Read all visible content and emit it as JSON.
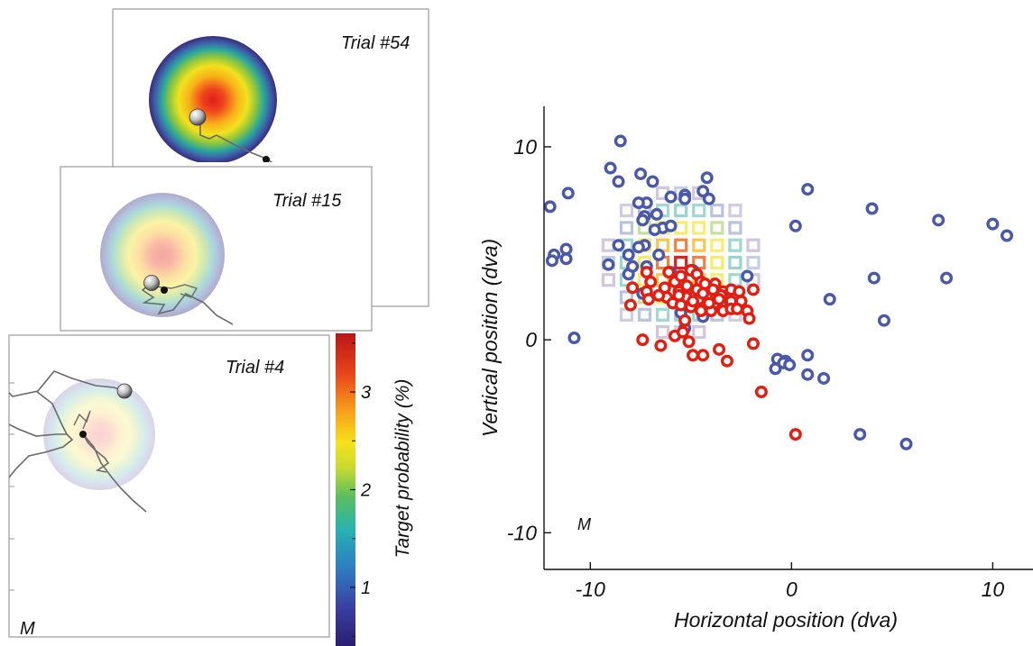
{
  "panels": {
    "trial_a": {
      "label": "Trial #54",
      "opacity": 1.0
    },
    "trial_b": {
      "label": "Trial #15",
      "opacity": 0.4
    },
    "trial_c": {
      "label": "Trial #4",
      "opacity": 0.2
    },
    "monkey_label_left": "M"
  },
  "colorbar": {
    "label": "Target probability (%)",
    "ticks": [
      "1",
      "2",
      "3"
    ],
    "tick_values": [
      1,
      2,
      3
    ],
    "range": [
      0.4,
      3.6
    ]
  },
  "chart_data": {
    "type": "scatter",
    "title": "",
    "xlabel": "Horizontal position (dva)",
    "ylabel": "Vertical position (dva)",
    "xlim": [
      -12.3,
      12
    ],
    "ylim": [
      -11.9,
      12.1
    ],
    "xticks": [
      -10,
      0,
      10
    ],
    "xtick_labels": [
      "-10",
      "0",
      "10"
    ],
    "yticks": [
      -10,
      0,
      10
    ],
    "ytick_labels": [
      "-10",
      "0",
      "10"
    ],
    "grid": false,
    "annotation": "M",
    "heatmap_center": [
      -5.5,
      4
    ],
    "series": [
      {
        "color": "#4a58a8",
        "points": [
          [
            -8.5,
            10.3
          ],
          [
            -9,
            8.9
          ],
          [
            -8.6,
            8.2
          ],
          [
            -7.5,
            8.6
          ],
          [
            -6.9,
            8.2
          ],
          [
            -4.2,
            8.4
          ],
          [
            -4.4,
            7.7
          ],
          [
            -4.1,
            7.3
          ],
          [
            -5.3,
            7.5
          ],
          [
            -5.3,
            7.3
          ],
          [
            -6,
            7.4
          ],
          [
            -7.2,
            7.1
          ],
          [
            -7.6,
            7.1
          ],
          [
            -11.1,
            7.6
          ],
          [
            -12,
            6.9
          ],
          [
            -7.3,
            6.4
          ],
          [
            -7.4,
            6.2
          ],
          [
            -6.7,
            6.5
          ],
          [
            -6.4,
            5.8
          ],
          [
            -6.8,
            5.7
          ],
          [
            -6,
            5.9
          ],
          [
            -7.3,
            4.9
          ],
          [
            -7.6,
            4.8
          ],
          [
            -6.6,
            4.4
          ],
          [
            -8.1,
            4.4
          ],
          [
            -7.2,
            3.8
          ],
          [
            -8.6,
            4.9
          ],
          [
            -8.1,
            3.4
          ],
          [
            -11.2,
            4.7
          ],
          [
            -11.2,
            4.2
          ],
          [
            -11.8,
            4.4
          ],
          [
            -11.9,
            4.1
          ],
          [
            -9.1,
            3.9
          ],
          [
            -7.9,
            3.8
          ],
          [
            -6,
            3.5
          ],
          [
            -4.9,
            3.6
          ],
          [
            -2.2,
            3.3
          ],
          [
            -3.5,
            1.8
          ],
          [
            -4.4,
            1.2
          ],
          [
            -5.5,
            1.4
          ],
          [
            -10.8,
            0.1
          ],
          [
            -5.3,
            0.6
          ],
          [
            -7.4,
            2.4
          ],
          [
            0.8,
            7.8
          ],
          [
            0.2,
            5.9
          ],
          [
            4,
            6.8
          ],
          [
            7.3,
            6.2
          ],
          [
            10,
            6
          ],
          [
            10.7,
            5.4
          ],
          [
            4.1,
            3.2
          ],
          [
            7.7,
            3.2
          ],
          [
            1.9,
            2.1
          ],
          [
            4.6,
            1
          ],
          [
            -0.7,
            -1
          ],
          [
            -0.3,
            -1.1
          ],
          [
            0.8,
            -0.8
          ],
          [
            -0.8,
            -1.5
          ],
          [
            -0.4,
            -1.2
          ],
          [
            -0.1,
            -1.3
          ],
          [
            0.8,
            -1.8
          ],
          [
            1.6,
            -2
          ],
          [
            3.4,
            -4.9
          ],
          [
            5.7,
            -5.4
          ]
        ]
      },
      {
        "color": "#e01f12",
        "points": [
          [
            -7.9,
            2.7
          ],
          [
            -7.2,
            3.5
          ],
          [
            -7,
            3
          ],
          [
            -7.2,
            2.5
          ],
          [
            -7.1,
            2.1
          ],
          [
            -8,
            1.8
          ],
          [
            -6.1,
            3.5
          ],
          [
            -6.3,
            2.7
          ],
          [
            -5.8,
            3
          ],
          [
            -5.5,
            3.3
          ],
          [
            -5,
            3.6
          ],
          [
            -4.7,
            3.4
          ],
          [
            -4.5,
            3
          ],
          [
            -4.2,
            2.7
          ],
          [
            -3.8,
            2.9
          ],
          [
            -3.4,
            2.5
          ],
          [
            -3,
            2.6
          ],
          [
            -2.6,
            2.5
          ],
          [
            -1.9,
            2.6
          ],
          [
            -6.2,
            2.2
          ],
          [
            -5.6,
            2.5
          ],
          [
            -5.2,
            2.2
          ],
          [
            -4.8,
            2.3
          ],
          [
            -4.6,
            2.1
          ],
          [
            -4.2,
            2.2
          ],
          [
            -3.8,
            1.9
          ],
          [
            -3.5,
            2.3
          ],
          [
            -3,
            2
          ],
          [
            -2.5,
            2
          ],
          [
            -6.6,
            2.3
          ],
          [
            -5.9,
            1.9
          ],
          [
            -5.5,
            1.8
          ],
          [
            -5,
            1.7
          ],
          [
            -4.5,
            1.5
          ],
          [
            -4,
            1.5
          ],
          [
            -3.4,
            1.5
          ],
          [
            -3,
            1.6
          ],
          [
            -2.7,
            1.6
          ],
          [
            -2.2,
            1.5
          ],
          [
            -5.3,
            1
          ],
          [
            -2.1,
            1.1
          ],
          [
            -5.8,
            0.2
          ],
          [
            -5.4,
            0.4
          ],
          [
            -5.1,
            -0.1
          ],
          [
            -7.4,
            0
          ],
          [
            -6.5,
            -0.3
          ],
          [
            -3.6,
            -0.5
          ],
          [
            -3.2,
            -1.1
          ],
          [
            -4.4,
            -0.8
          ],
          [
            -4.9,
            -0.8
          ],
          [
            -1.9,
            -0.2
          ],
          [
            -1.5,
            -2.7
          ],
          [
            0.2,
            -4.9
          ],
          [
            -3.9,
            2.6
          ],
          [
            -4.3,
            2.9
          ],
          [
            -5.2,
            2.8
          ],
          [
            -4.7,
            2.6
          ],
          [
            -3.6,
            2.1
          ],
          [
            -4.1,
            1.9
          ],
          [
            -4.9,
            2
          ],
          [
            -5.6,
            2.3
          ],
          [
            -4.4,
            2.4
          ]
        ]
      }
    ]
  }
}
